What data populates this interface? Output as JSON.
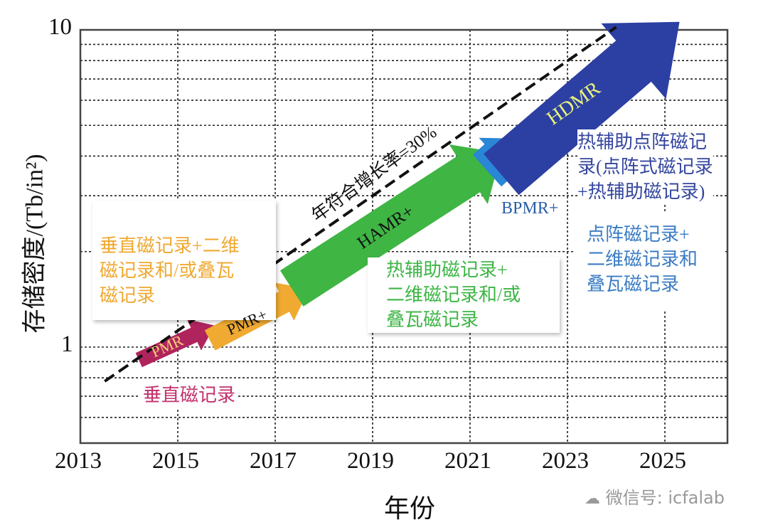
{
  "chart_data": {
    "type": "diagram-on-axes",
    "xlabel": "年份",
    "ylabel": "存储密度/(Tb/in²)",
    "x_ticks": [
      "2013",
      "2015",
      "2017",
      "2019",
      "2021",
      "2023",
      "2025"
    ],
    "y_ticks": [
      "10",
      "1"
    ],
    "xlim": [
      2013,
      2026.3
    ],
    "ylim": [
      0.5,
      10
    ],
    "y_scale": "log",
    "grid": true,
    "trend_line": {
      "label": "年符合增长率=30%",
      "start": [
        2013.5,
        0.78
      ],
      "end": [
        2024.0,
        10.2
      ],
      "style": "dashed",
      "color": "#111111"
    },
    "arrows": [
      {
        "label": "PMR",
        "start": [
          2014.2,
          0.91
        ],
        "end": [
          2015.76,
          1.17
        ],
        "color": "#b0245e",
        "label_color": "#f3cf78"
      },
      {
        "label": "PMR+",
        "start": [
          2015.66,
          1.05
        ],
        "end": [
          2017.7,
          1.53
        ],
        "color": "#f0aa32",
        "label_color": "#111111"
      },
      {
        "label": "HAMR+",
        "start": [
          2017.34,
          1.53
        ],
        "end": [
          2021.64,
          4.09
        ],
        "color": "#3fb544",
        "label_color": "#111111"
      },
      {
        "label": "BPMR+",
        "start": [
          2021.35,
          3.6
        ],
        "end": [
          2022.08,
          4.54
        ],
        "color": "#2a86d6",
        "label_color": "#2a5fa8"
      },
      {
        "label": "HDMR",
        "start": [
          2021.64,
          3.5
        ],
        "end": [
          2025.3,
          10.6
        ],
        "color": "#2c3fa2",
        "label_color": "#e8f27a"
      }
    ],
    "annotations": [
      {
        "lines": [
          "垂直磁记录+二维",
          "磁记录和/或叠瓦",
          "磁记录"
        ],
        "color": "#f0a830"
      },
      {
        "lines": [
          "垂直磁记录"
        ],
        "color": "#c2306c"
      },
      {
        "lines": [
          "热辅助磁记录+",
          "二维磁记录和/或",
          "叠瓦磁记录"
        ],
        "color": "#3cb544"
      },
      {
        "lines": [
          "热辅助点阵磁记",
          "录(点阵式磁记录",
          "+热辅助磁记录)"
        ],
        "color": "#34469e"
      },
      {
        "lines": [
          "点阵磁记录+",
          "二维磁记录和",
          "叠瓦磁记录"
        ],
        "color": "#3a7cc4"
      }
    ]
  },
  "watermark": "微信号: icfalab"
}
